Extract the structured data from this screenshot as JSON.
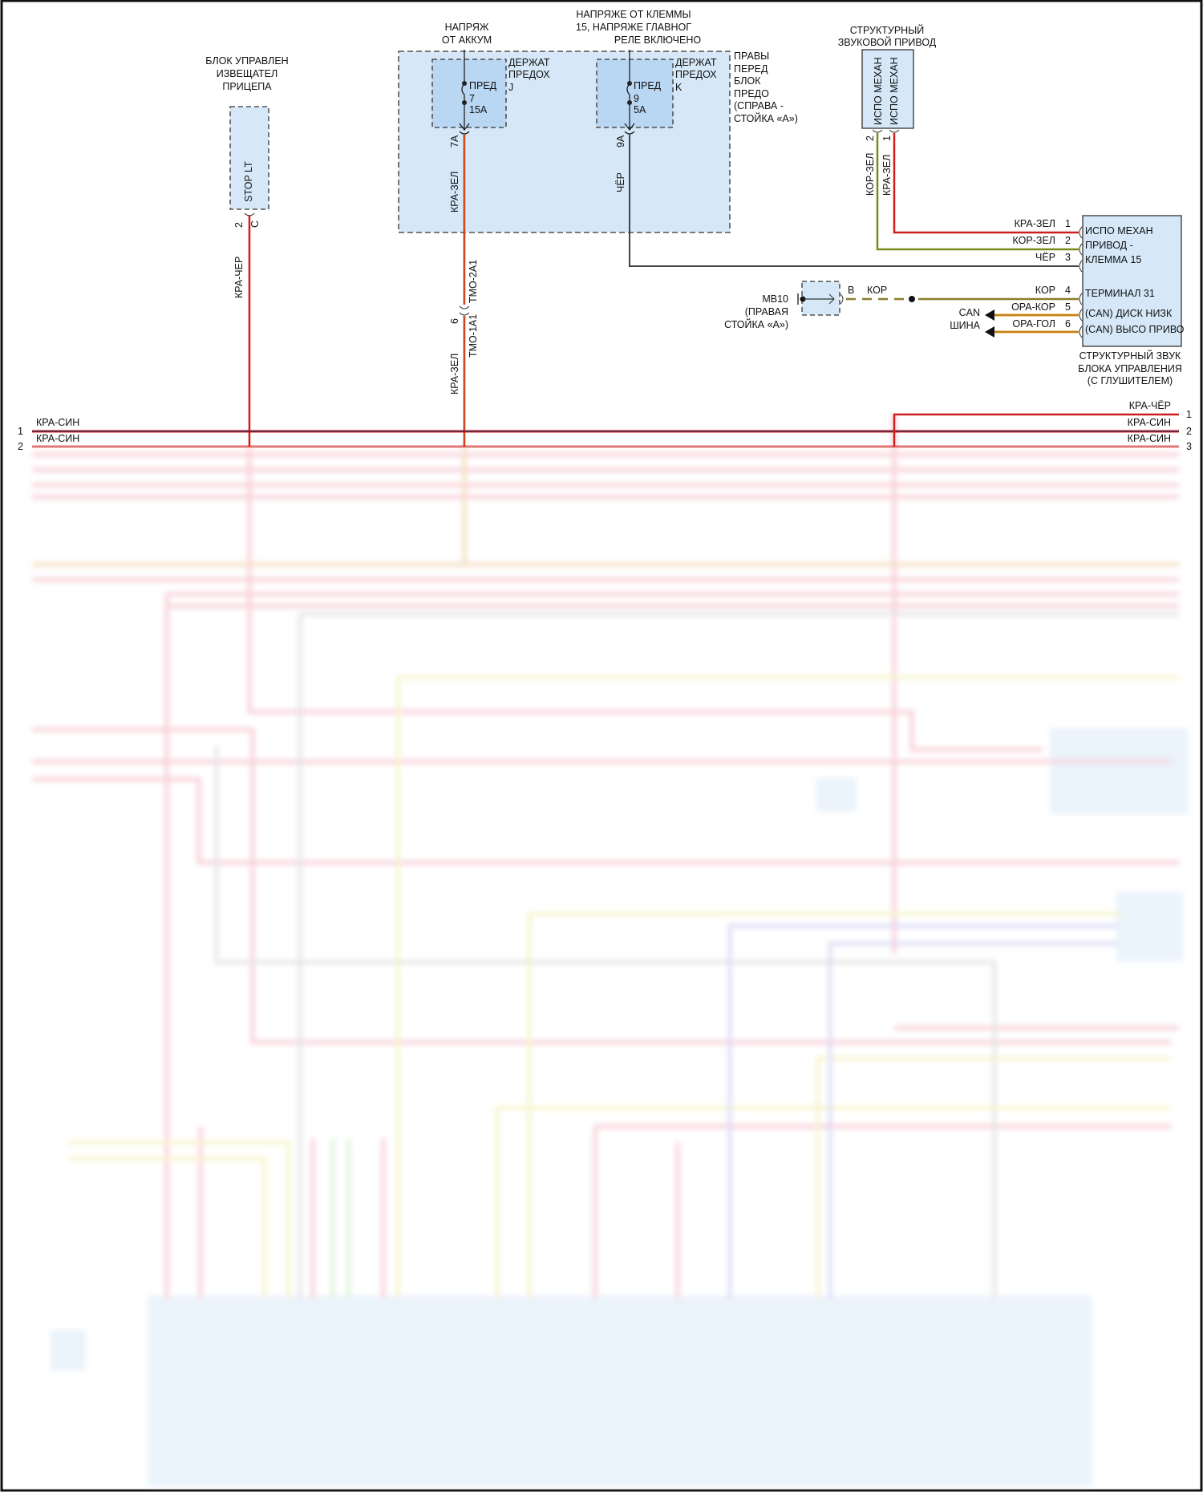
{
  "trailer_module": {
    "title": [
      "БЛОК УПРАВЛЕН",
      "ИЗВЕЩАТЕЛ",
      "ПРИЦЕПА"
    ],
    "pin_label": "STOP LT",
    "pin_number": "2",
    "connector": "C",
    "wire_color": "КРА-ЧЕР"
  },
  "battery_supply": [
    "НАПРЯЖ",
    "ОТ АККУМ"
  ],
  "terminal15_supply": [
    "НАПРЯЖЕ ОТ КЛЕММЫ",
    "15, НАПРЯЖЕ ГЛАВНОГ",
    "РЕЛЕ ВКЛЮЧЕНО"
  ],
  "fuse_box": {
    "title": [
      "ПРАВЫ",
      "ПЕРЕД",
      "БЛОК",
      "ПРЕДО",
      "(СПРАВА -",
      "СТОЙКА «А»)"
    ],
    "holder_j": {
      "title": [
        "ДЕРЖАТ",
        "ПРЕДОХ",
        "J"
      ],
      "fuse": [
        "ПРЕД",
        "7",
        "15A"
      ],
      "pin": "7A",
      "wire": "КРА-ЗЕЛ"
    },
    "holder_k": {
      "title": [
        "ДЕРЖАТ",
        "ПРЕДОХ",
        "K"
      ],
      "fuse": [
        "ПРЕД",
        "9",
        "5A"
      ],
      "pin": "9A",
      "wire": "ЧЁР"
    }
  },
  "inline_connector": {
    "pin": "6",
    "upper": "TMO-2A1",
    "lower": "TMO-1A1",
    "wire_below": "КРА-ЗЕЛ"
  },
  "sound_actuator": {
    "title": [
      "СТРУКТУРНЫЙ",
      "ЗВУКОВОЙ ПРИВОД"
    ],
    "pins": [
      {
        "num": "2",
        "label": "ИСПО МЕХАН",
        "wire": "КОР-ЗЕЛ"
      },
      {
        "num": "1",
        "label": "ИСПО МЕХАН",
        "wire": "КРА-ЗЕЛ"
      }
    ]
  },
  "sound_control_unit": {
    "caption": [
      "СТРУКТУРНЫЙ ЗВУК",
      "БЛОКА УПРАВЛЕНИЯ",
      "(С ГЛУШИТЕЛЕМ)"
    ],
    "labels": [
      "ИСПО МЕХАН",
      "ПРИВОД -",
      "КЛЕММА 15",
      "ТЕРМИНАЛ 31",
      "(CAN) ДИСК НИЗК",
      "(CAN) ВЫСО ПРИВО"
    ],
    "pins": [
      {
        "num": "1",
        "wire": "КРА-ЗЕЛ"
      },
      {
        "num": "2",
        "wire": "КОР-ЗЕЛ"
      },
      {
        "num": "3",
        "wire": "ЧЁР"
      },
      {
        "num": "4",
        "wire": "КОР"
      },
      {
        "num": "5",
        "wire": "ОРА-КОР"
      },
      {
        "num": "6",
        "wire": "ОРА-ГОЛ"
      }
    ]
  },
  "ground": {
    "name": "MB10",
    "location": [
      "(ПРАВАЯ",
      "СТОЙКА «А»)"
    ],
    "connector": "B",
    "wire": "КОР"
  },
  "can_bus": [
    "CAN",
    "ШИНА"
  ],
  "harness_left": [
    {
      "num": "1",
      "wire": "КРА-СИН"
    },
    {
      "num": "2",
      "wire": "КРА-СИН"
    }
  ],
  "harness_right": [
    {
      "num": "1",
      "wire": "КРА-ЧЁР"
    },
    {
      "num": "2",
      "wire": "КРА-СИН"
    },
    {
      "num": "3",
      "wire": "КРА-СИН"
    }
  ],
  "colors": {
    "red": "#cc1f1a",
    "blue_fill": "#d6e8f8",
    "olive": "#8c8a22",
    "orange": "#e49a1c",
    "navy": "#1a2a6c",
    "pink_blur": "#f2a7b6"
  }
}
